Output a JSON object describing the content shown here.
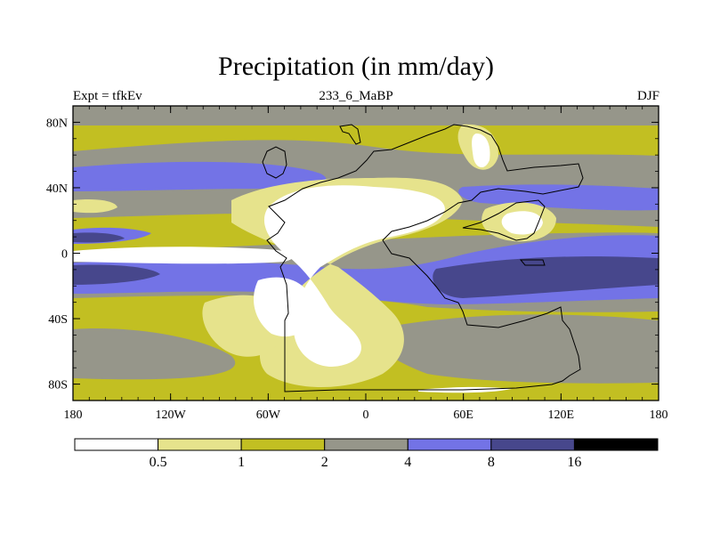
{
  "title": "Precipitation (in mm/day)",
  "left_subtitle": "Expt = tfkEv",
  "center_subtitle": "233_6_MaBP",
  "right_subtitle": "DJF",
  "colors": {
    "c0": "#ffffff",
    "c1": "#e6e38c",
    "c2": "#c2bf22",
    "c3": "#96968a",
    "c4": "#7373e6",
    "c5": "#47478c",
    "c6": "#000000"
  },
  "x_ticks": [
    "180",
    "120W",
    "60W",
    "0",
    "60E",
    "120E",
    "180"
  ],
  "y_ticks": [
    "80N",
    "40N",
    "0",
    "40S",
    "80S"
  ],
  "colorbar": {
    "labels": [
      "0.5",
      "1",
      "2",
      "4",
      "8",
      "16"
    ]
  }
}
